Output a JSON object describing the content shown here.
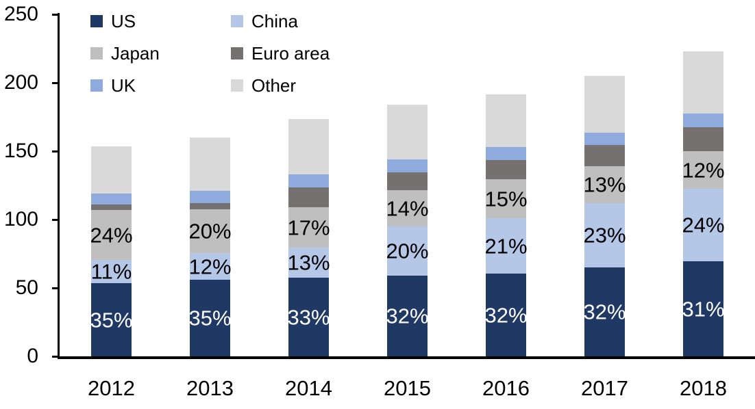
{
  "chart_data": {
    "type": "bar",
    "stacked": true,
    "title": "",
    "xlabel": "",
    "ylabel": "",
    "categories": [
      "2012",
      "2013",
      "2014",
      "2015",
      "2016",
      "2017",
      "2018"
    ],
    "series": [
      {
        "name": "US",
        "color": "#1F3864",
        "values": [
          53.5,
          56,
          57.5,
          59,
          60.5,
          65,
          69.5
        ],
        "labels": [
          "35%",
          "35%",
          "33%",
          "32%",
          "32%",
          "32%",
          "31%"
        ],
        "label_color": "#FFFFFF"
      },
      {
        "name": "China",
        "color": "#B4C7E7",
        "values": [
          17,
          19.5,
          22,
          36,
          40.5,
          47,
          53
        ],
        "labels": [
          "11%",
          "12%",
          "13%",
          "20%",
          "21%",
          "23%",
          "24%"
        ],
        "label_color": "#000000"
      },
      {
        "name": "Japan",
        "color": "#BFBFBF",
        "values": [
          36.5,
          32,
          29.5,
          26.5,
          28.5,
          27,
          27.5
        ],
        "labels": [
          "24%",
          "20%",
          "17%",
          "14%",
          "15%",
          "13%",
          "12%"
        ],
        "label_color": "#000000"
      },
      {
        "name": "Euro area",
        "color": "#767171",
        "values": [
          4,
          4.5,
          14.5,
          13,
          14,
          15.5,
          17.5
        ],
        "labels": null,
        "label_color": null
      },
      {
        "name": "UK",
        "color": "#8FAADC",
        "values": [
          8,
          9,
          9.5,
          9.5,
          9.5,
          9,
          10
        ],
        "labels": null,
        "label_color": null
      },
      {
        "name": "Other",
        "color": "#D9D9D9",
        "values": [
          34.5,
          39,
          40.5,
          40,
          38.5,
          41.5,
          45.5
        ],
        "labels": null,
        "label_color": null
      }
    ],
    "totals": [
      153.5,
      160,
      173.5,
      184,
      191.5,
      205,
      223
    ],
    "ylim": [
      0,
      250
    ],
    "yticks": [
      0,
      50,
      100,
      150,
      200,
      250
    ],
    "grid": false,
    "legend_position": "top-left",
    "legend_columns": 2,
    "legend_order": [
      "US",
      "China",
      "Japan",
      "Euro area",
      "UK",
      "Other"
    ],
    "axis_color": "#000000",
    "label_text_color": "#000000"
  }
}
